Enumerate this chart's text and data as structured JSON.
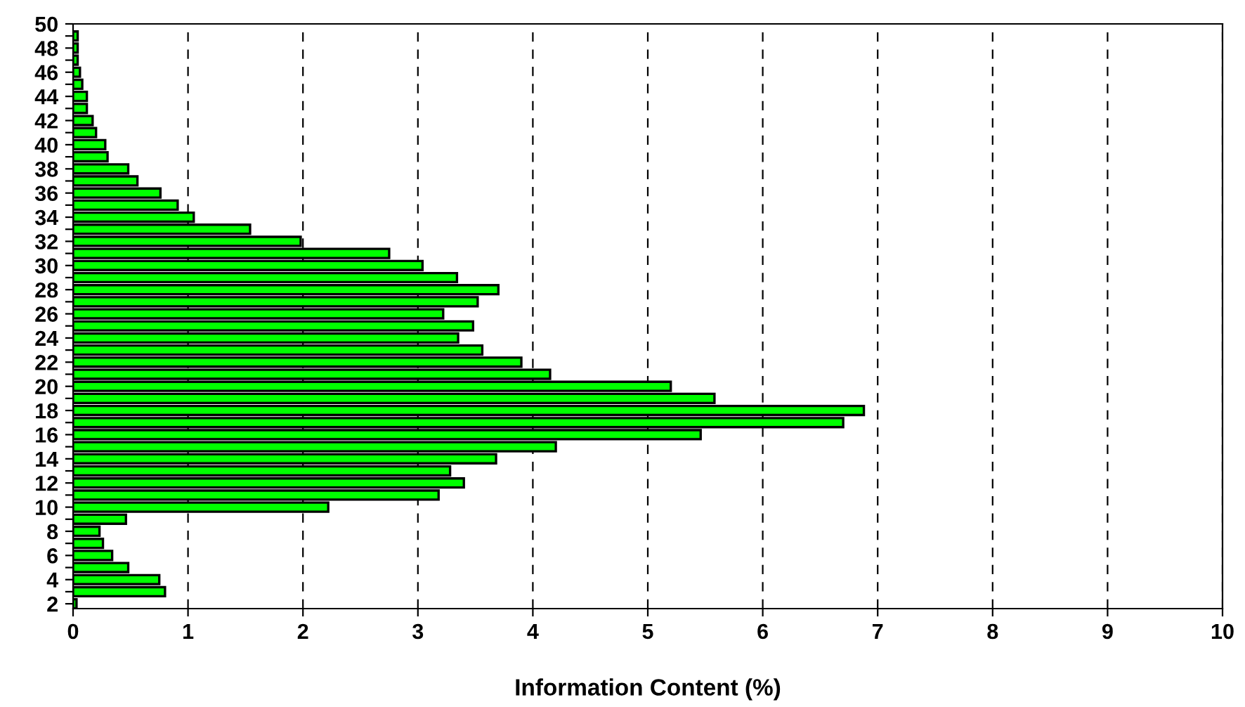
{
  "chart_data": {
    "type": "bar",
    "orientation": "horizontal",
    "xlabel": "Information Content (%)",
    "x": [
      2,
      3,
      4,
      5,
      6,
      7,
      8,
      9,
      10,
      11,
      12,
      13,
      14,
      15,
      16,
      17,
      18,
      19,
      20,
      21,
      22,
      23,
      24,
      25,
      26,
      27,
      28,
      29,
      30,
      31,
      32,
      33,
      34,
      35,
      36,
      37,
      38,
      39,
      40,
      41,
      42,
      43,
      44,
      45,
      46,
      47,
      48,
      49
    ],
    "values": [
      0.03,
      0.8,
      0.75,
      0.48,
      0.34,
      0.26,
      0.23,
      0.46,
      2.22,
      3.18,
      3.4,
      3.28,
      3.68,
      4.2,
      5.46,
      6.7,
      6.88,
      5.58,
      5.2,
      4.15,
      3.9,
      3.56,
      3.35,
      3.48,
      3.22,
      3.52,
      3.7,
      3.34,
      3.04,
      2.75,
      1.98,
      1.54,
      1.05,
      0.91,
      0.76,
      0.56,
      0.48,
      0.3,
      0.28,
      0.2,
      0.17,
      0.12,
      0.12,
      0.08,
      0.06,
      0.04,
      0.04,
      0.04
    ],
    "color": "#00ff00",
    "xlim": [
      0,
      10
    ],
    "xticks": [
      0,
      1,
      2,
      3,
      4,
      5,
      6,
      7,
      8,
      9,
      10
    ],
    "ylim": [
      1.6,
      50
    ],
    "yticks": [
      2,
      {
        "value": 3,
        "label": null
      },
      4,
      {
        "value": 5,
        "label": null
      },
      6,
      {
        "value": 7,
        "label": null
      },
      8,
      {
        "value": 9,
        "label": null
      },
      10,
      {
        "value": 11,
        "label": null
      },
      12,
      {
        "value": 13,
        "label": null
      },
      14,
      {
        "value": 15,
        "label": null
      },
      16,
      {
        "value": 17,
        "label": null
      },
      18,
      {
        "value": 19,
        "label": null
      },
      20,
      {
        "value": 21,
        "label": null
      },
      22,
      {
        "value": 23,
        "label": null
      },
      24,
      {
        "value": 25,
        "label": null
      },
      26,
      {
        "value": 27,
        "label": null
      },
      28,
      {
        "value": 29,
        "label": null
      },
      30,
      {
        "value": 31,
        "label": null
      },
      32,
      {
        "value": 33,
        "label": null
      },
      34,
      {
        "value": 35,
        "label": null
      },
      36,
      {
        "value": 37,
        "label": null
      },
      38,
      {
        "value": 39,
        "label": null
      },
      40,
      {
        "value": 41,
        "label": null
      },
      42,
      {
        "value": 43,
        "label": null
      },
      44,
      {
        "value": 45,
        "label": null
      },
      46,
      {
        "value": 47,
        "label": null
      },
      48,
      {
        "value": 49,
        "label": null
      },
      50
    ],
    "grid": "x",
    "line_style": "dashed",
    "legend": false
  }
}
